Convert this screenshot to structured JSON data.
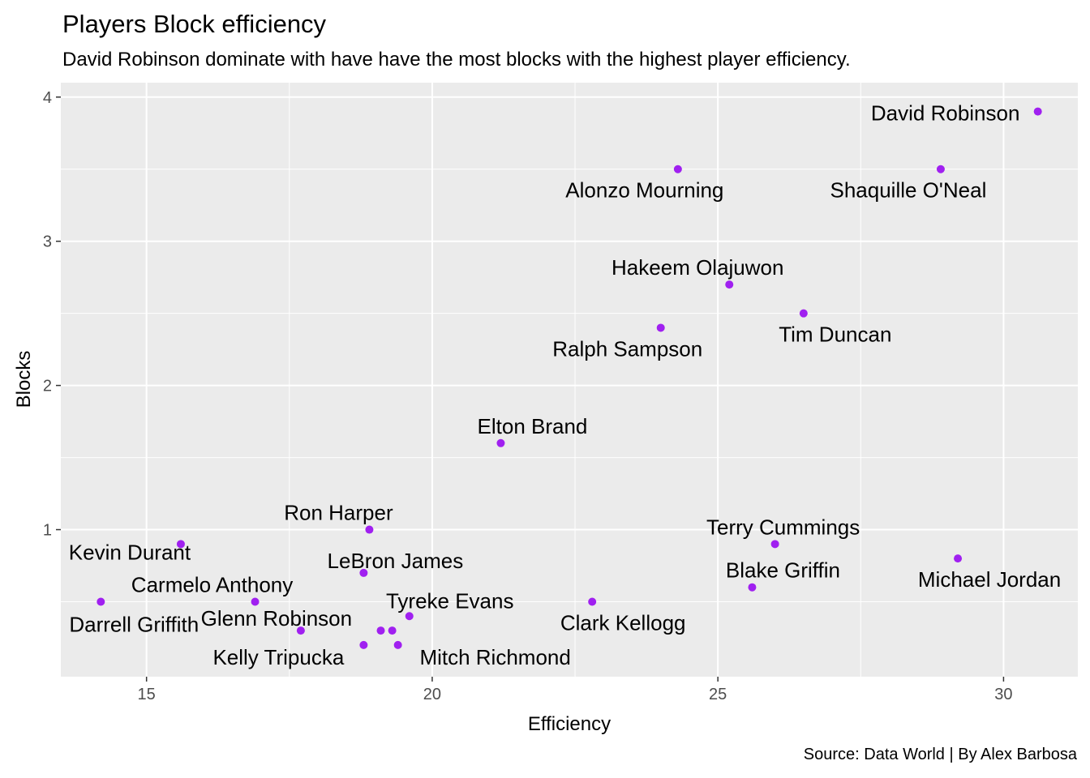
{
  "title": "Players Block efficiency",
  "subtitle": "David Robinson dominate with have have the most blocks with the highest player efficiency.",
  "caption": "Source: Data World | By Alex Barbosa",
  "colors": {
    "panel": "#ebebeb",
    "grid": "#ffffff",
    "point": "#a020f0",
    "tick": "#4d4d4d"
  },
  "chart_data": {
    "type": "scatter",
    "xlabel": "Efficiency",
    "ylabel": "Blocks",
    "xlim": [
      13.5,
      31.3
    ],
    "ylim": [
      -0.02,
      4.1
    ],
    "xticks": [
      15,
      20,
      25,
      30
    ],
    "yticks": [
      1,
      2,
      3,
      4
    ],
    "grid": true,
    "points": [
      {
        "name": "David Robinson",
        "x": 30.6,
        "y": 3.9
      },
      {
        "name": "Alonzo Mourning",
        "x": 24.3,
        "y": 3.5
      },
      {
        "name": "Shaquille O'Neal",
        "x": 28.9,
        "y": 3.5
      },
      {
        "name": "Hakeem Olajuwon",
        "x": 25.2,
        "y": 2.7
      },
      {
        "name": "Tim Duncan",
        "x": 26.5,
        "y": 2.5
      },
      {
        "name": "Ralph Sampson",
        "x": 24.0,
        "y": 2.4
      },
      {
        "name": "Elton Brand",
        "x": 21.2,
        "y": 1.6
      },
      {
        "name": "Ron Harper",
        "x": 18.9,
        "y": 1.0
      },
      {
        "name": "Terry Cummings",
        "x": 26.0,
        "y": 0.9
      },
      {
        "name": "Kevin Durant",
        "x": 15.6,
        "y": 0.9
      },
      {
        "name": "Michael Jordan",
        "x": 29.2,
        "y": 0.8
      },
      {
        "name": "LeBron James",
        "x": 18.8,
        "y": 0.7
      },
      {
        "name": "Blake Griffin",
        "x": 25.6,
        "y": 0.6
      },
      {
        "name": "Carmelo Anthony",
        "x": 16.9,
        "y": 0.5
      },
      {
        "name": "Darrell Griffith",
        "x": 14.2,
        "y": 0.5
      },
      {
        "name": "Clark Kellogg",
        "x": 22.8,
        "y": 0.5
      },
      {
        "name": "Tyreke Evans",
        "x": 19.6,
        "y": 0.4
      },
      {
        "name": "Glenn Robinson",
        "x": 17.7,
        "y": 0.3
      },
      {
        "name": "",
        "x": 19.1,
        "y": 0.3
      },
      {
        "name": "",
        "x": 19.3,
        "y": 0.3
      },
      {
        "name": "Kelly Tripucka",
        "x": 18.8,
        "y": 0.2
      },
      {
        "name": "Mitch Richmond",
        "x": 19.4,
        "y": 0.2
      }
    ]
  }
}
